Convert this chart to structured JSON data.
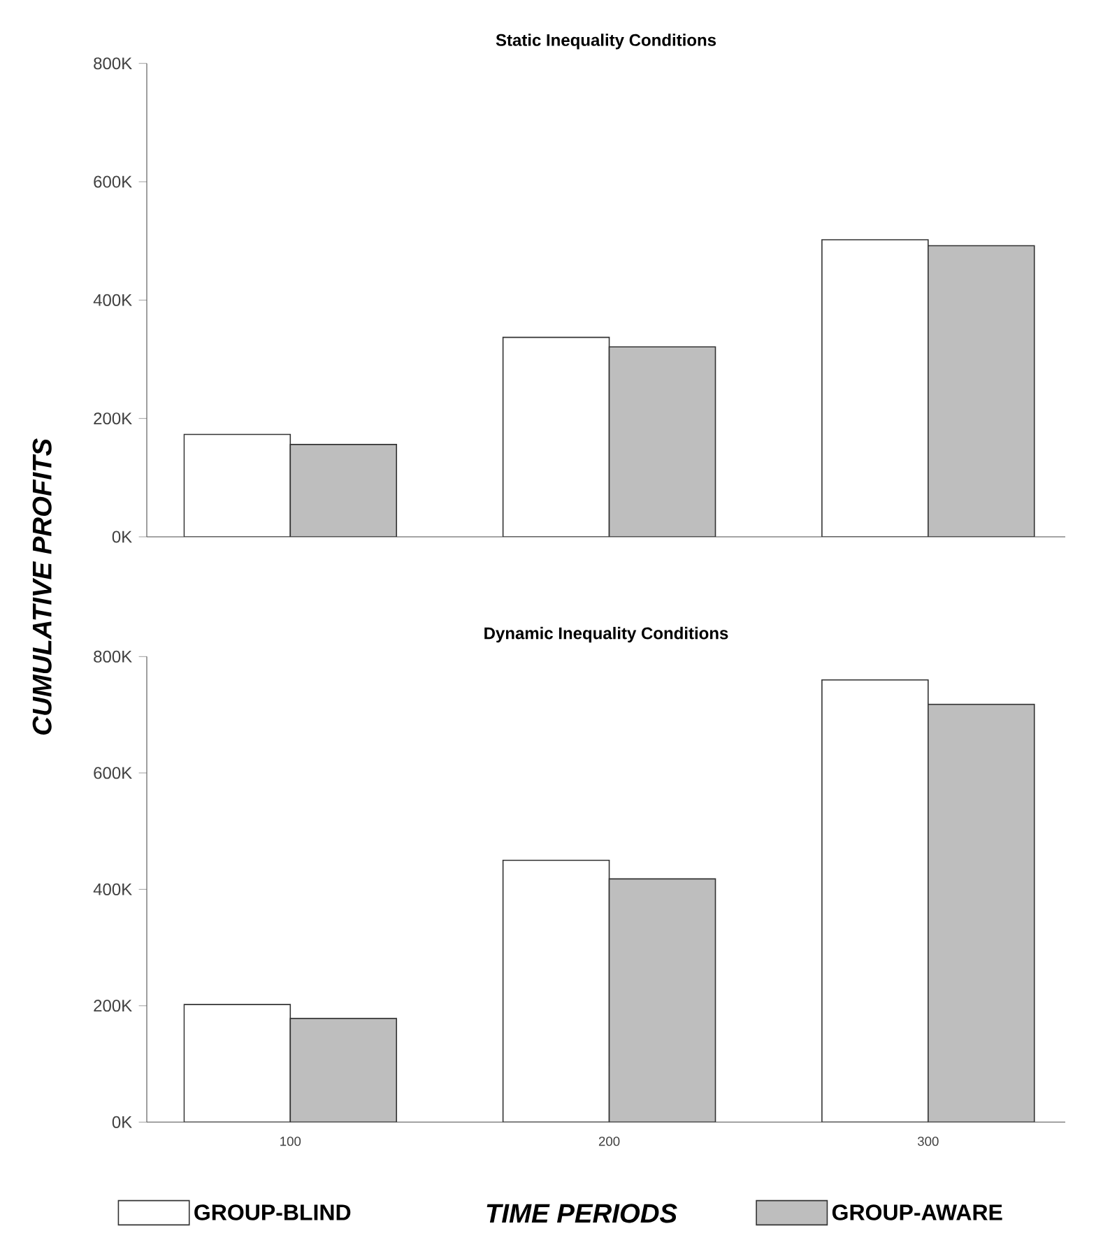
{
  "chart_data": [
    {
      "type": "bar",
      "title": "Static Inequality Conditions",
      "ylabel": "CUMULATIVE PROFITS",
      "categories": [
        "100",
        "200",
        "300"
      ],
      "series": [
        {
          "color": "#ffffff",
          "values": [
            173000,
            337000,
            502000
          ]
        },
        {
          "color": "#bebebe",
          "values": [
            156000,
            321000,
            492000
          ]
        }
      ],
      "ylim": [
        0,
        800000
      ],
      "yticks": [
        {
          "value": 0,
          "label": "0K"
        },
        {
          "value": 200000,
          "label": "200K"
        },
        {
          "value": 400000,
          "label": "400K"
        },
        {
          "value": 600000,
          "label": "600K"
        },
        {
          "value": 800000,
          "label": "800K"
        }
      ],
      "tick_labels": "y"
    },
    {
      "type": "bar",
      "title": "Dynamic Inequality Conditions",
      "xlabel": "TIME PERIODS",
      "categories": [
        "100",
        "200",
        "300"
      ],
      "series": [
        {
          "name": "GROUP-BLIND",
          "color": "#ffffff",
          "values": [
            202000,
            450000,
            760000
          ]
        },
        {
          "name": "GROUP-AWARE",
          "color": "#bebebe",
          "values": [
            178000,
            418000,
            718000
          ]
        }
      ],
      "ylim": [
        0,
        800000
      ],
      "yticks": [
        {
          "value": 0,
          "label": "0K"
        },
        {
          "value": 200000,
          "label": "200K"
        },
        {
          "value": 400000,
          "label": "400K"
        },
        {
          "value": 600000,
          "label": "600K"
        },
        {
          "value": 800000,
          "label": "800K"
        }
      ],
      "legend": "bottom"
    }
  ]
}
